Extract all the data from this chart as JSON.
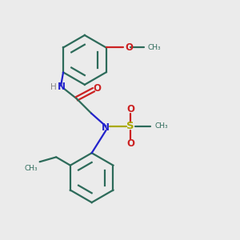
{
  "bg_color": "#ebebeb",
  "bond_color": "#2d6b5a",
  "N_color": "#2222cc",
  "O_color": "#cc2222",
  "S_color": "#aaaa00",
  "line_width": 1.6,
  "fig_size": [
    3.0,
    3.0
  ],
  "dpi": 100,
  "xlim": [
    0,
    10
  ],
  "ylim": [
    0,
    10
  ]
}
